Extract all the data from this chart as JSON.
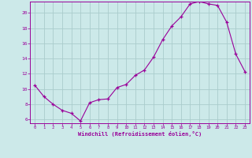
{
  "x": [
    0,
    1,
    2,
    3,
    4,
    5,
    6,
    7,
    8,
    9,
    10,
    11,
    12,
    13,
    14,
    15,
    16,
    17,
    18,
    19,
    20,
    21,
    22,
    23
  ],
  "y": [
    10.5,
    9.0,
    8.0,
    7.2,
    6.8,
    5.8,
    8.2,
    8.6,
    8.7,
    10.2,
    10.6,
    11.8,
    12.5,
    14.2,
    16.5,
    18.3,
    19.5,
    21.2,
    21.5,
    21.2,
    21.0,
    18.8,
    14.6,
    12.3
  ],
  "line_color": "#990099",
  "marker": "+",
  "marker_size": 3,
  "bg_color": "#cce9e9",
  "grid_color": "#aacccc",
  "xlabel": "Windchill (Refroidissement éolien,°C)",
  "xlabel_color": "#990099",
  "tick_color": "#990099",
  "ylim": [
    5.5,
    21.5
  ],
  "xlim": [
    -0.5,
    23.5
  ],
  "yticks": [
    6,
    8,
    10,
    12,
    14,
    16,
    18,
    20
  ],
  "xticks": [
    0,
    1,
    2,
    3,
    4,
    5,
    6,
    7,
    8,
    9,
    10,
    11,
    12,
    13,
    14,
    15,
    16,
    17,
    18,
    19,
    20,
    21,
    22,
    23
  ]
}
